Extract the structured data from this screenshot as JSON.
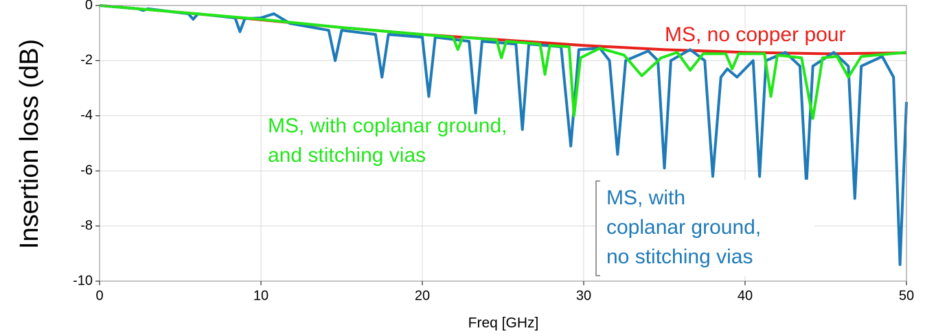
{
  "chart_data": {
    "type": "line",
    "xlabel": "Freq [GHz]",
    "ylabel": "Insertion loss (dB)",
    "xlim": [
      0,
      50
    ],
    "ylim": [
      -10,
      0
    ],
    "xticks": [
      0,
      10,
      20,
      30,
      40,
      50
    ],
    "yticks": [
      0,
      -2,
      -4,
      -6,
      -8,
      -10
    ],
    "grid": true,
    "series": [
      {
        "name": "MS, no copper pour",
        "color": "#e8201a",
        "x": [
          0,
          5,
          10,
          15,
          20,
          25,
          30,
          35,
          40,
          45,
          50
        ],
        "values": [
          0,
          -0.25,
          -0.52,
          -0.8,
          -1.05,
          -1.25,
          -1.45,
          -1.6,
          -1.7,
          -1.75,
          -1.72
        ]
      },
      {
        "name": "MS, with coplanar ground, no stitching vias",
        "color": "#1f7ab8",
        "x": [
          0,
          2.4,
          2.7,
          3.0,
          5.5,
          5.8,
          6.1,
          8.4,
          8.7,
          9.0,
          10.0,
          10.8,
          11.8,
          14.2,
          14.6,
          15.0,
          17.1,
          17.5,
          17.9,
          20.0,
          20.4,
          20.8,
          22.9,
          23.3,
          23.7,
          25.8,
          26.2,
          26.6,
          28.6,
          29.2,
          29.7,
          31.0,
          31.6,
          32.1,
          32.6,
          34.0,
          34.6,
          35.0,
          35.4,
          36.6,
          37.5,
          38.0,
          38.5,
          38.9,
          39.5,
          40.5,
          40.9,
          41.3,
          42.5,
          43.4,
          43.8,
          44.2,
          45.5,
          46.4,
          46.8,
          47.2,
          48.5,
          49.2,
          49.6,
          50
        ],
        "values": [
          0,
          -0.12,
          -0.18,
          -0.12,
          -0.3,
          -0.5,
          -0.3,
          -0.45,
          -0.95,
          -0.48,
          -0.45,
          -0.3,
          -0.65,
          -0.9,
          -2.0,
          -0.9,
          -1.05,
          -2.6,
          -1.05,
          -1.15,
          -3.3,
          -1.15,
          -1.3,
          -3.9,
          -1.3,
          -1.4,
          -4.5,
          -1.4,
          -1.5,
          -5.1,
          -1.6,
          -1.55,
          -2.0,
          -5.4,
          -2.0,
          -1.65,
          -2.0,
          -5.9,
          -2.0,
          -1.6,
          -2.0,
          -6.2,
          -2.6,
          -2.3,
          -2.6,
          -2.0,
          -6.2,
          -2.0,
          -1.7,
          -2.2,
          -6.5,
          -2.2,
          -1.7,
          -2.2,
          -7.0,
          -2.2,
          -1.85,
          -2.6,
          -9.4,
          -3.5
        ]
      },
      {
        "name": "MS, with coplanar ground, and stitching vias",
        "color": "#22e61a",
        "x": [
          0,
          5,
          10,
          15,
          20,
          21.9,
          22.2,
          22.5,
          24.6,
          24.9,
          25.2,
          27.3,
          27.6,
          27.9,
          29.1,
          29.4,
          29.8,
          31,
          32.5,
          33.6,
          34.8,
          35.8,
          36.6,
          37.4,
          38.8,
          39.2,
          39.6,
          41.2,
          41.6,
          42.0,
          43.5,
          44.2,
          44.8,
          45.7,
          46.4,
          47.2,
          50
        ],
        "values": [
          0,
          -0.25,
          -0.5,
          -0.8,
          -1.05,
          -1.15,
          -1.6,
          -1.15,
          -1.25,
          -1.9,
          -1.3,
          -1.4,
          -2.5,
          -1.45,
          -1.5,
          -4.0,
          -1.9,
          -1.55,
          -1.8,
          -2.55,
          -1.9,
          -1.7,
          -2.35,
          -1.75,
          -1.75,
          -2.3,
          -1.75,
          -1.75,
          -3.3,
          -1.8,
          -1.9,
          -4.1,
          -1.9,
          -1.85,
          -2.6,
          -1.85,
          -1.7
        ]
      }
    ],
    "annotations": [
      {
        "lines": [
          "MS, no copper pour"
        ]
      },
      {
        "lines": [
          "MS, with coplanar ground,",
          "and stitching vias"
        ]
      },
      {
        "lines": [
          "MS, with",
          "coplanar ground,",
          "no stitching vias"
        ]
      }
    ]
  }
}
